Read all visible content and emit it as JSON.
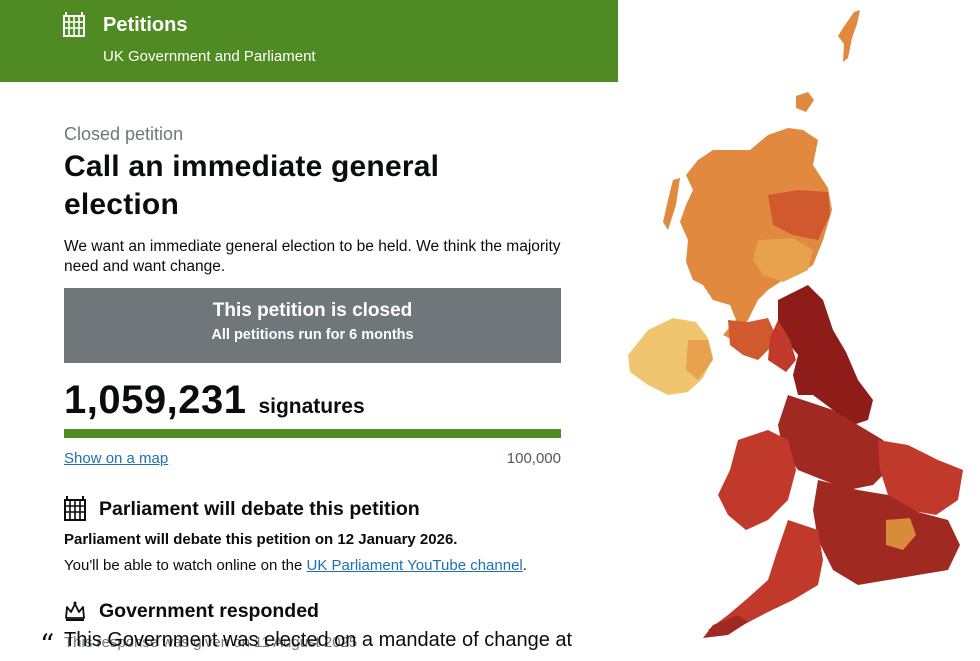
{
  "header": {
    "title": "Petitions",
    "subtitle": "UK Government and Parliament",
    "logo_icon": "portcullis-icon",
    "color": "#4f8b22"
  },
  "petition": {
    "status_caption": "Closed petition",
    "title": "Call an immediate general election",
    "description": "We want an immediate general election to be held. We think the majority need and want change."
  },
  "closed_notice": {
    "line1": "This petition is closed",
    "line2": "All petitions run for 6 months"
  },
  "signatures": {
    "count": "1,059,231",
    "label": "signatures",
    "progress_fraction": 1.0,
    "map_link": "Show on a map",
    "threshold": "100,000"
  },
  "debate": {
    "icon": "portcullis-icon",
    "heading": "Parliament will debate this petition",
    "date_text": "Parliament will debate this petition on 12 January 2026.",
    "watch_prefix": "You'll be able to watch online on the ",
    "watch_link": "UK Parliament YouTube channel",
    "watch_suffix": "."
  },
  "government": {
    "icon": "crown-icon",
    "heading": "Government responded",
    "date_text": "This response was given on 11 August 2025",
    "quote_mark": "“",
    "quote_start": "This Government was elected on a mandate of change at"
  },
  "map": {
    "label": "uk-signature-map",
    "colors": {
      "dark": "#8e1d1a",
      "mid": "#c0392b",
      "light": "#e0893f",
      "pale": "#f0c56f"
    }
  }
}
